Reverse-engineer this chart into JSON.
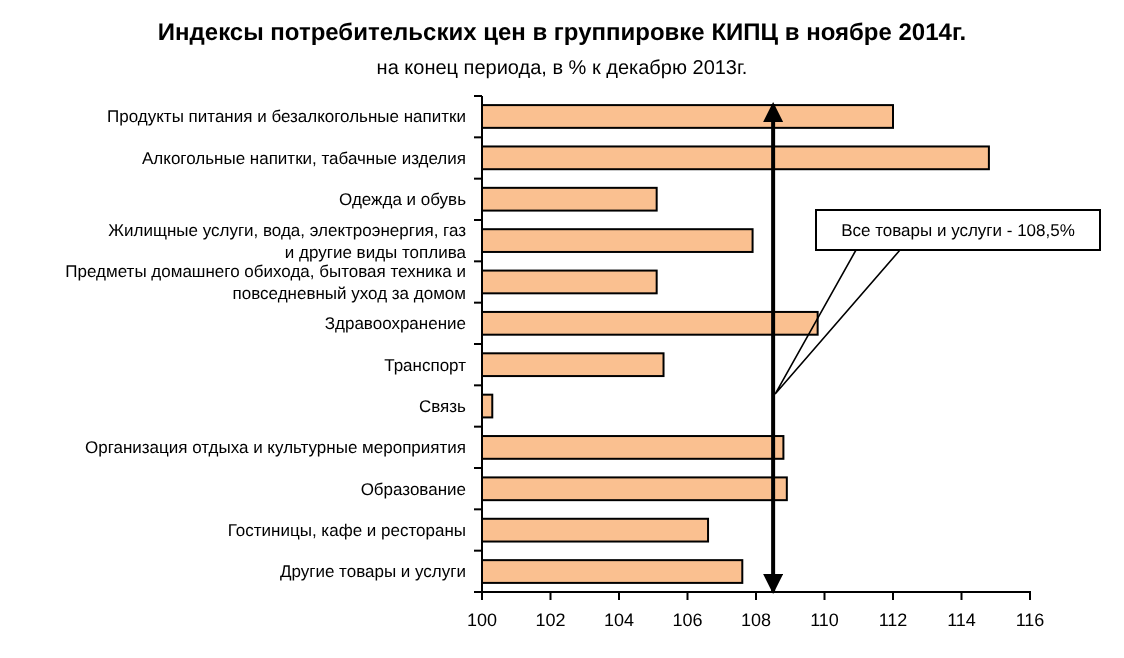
{
  "chart_data": {
    "type": "bar",
    "orientation": "horizontal",
    "title": "Индексы потребительских цен в группировке КИПЦ в ноябре 2014г.",
    "subtitle": "на конец периода, в % к декабрю 2013г.",
    "categories": [
      "Продукты питания и безалкогольные напитки",
      "Алкогольные напитки, табачные изделия",
      "Одежда и обувь",
      "Жилищные услуги, вода, электроэнергия, газ\nи другие виды топлива",
      "Предметы домашнего обихода, бытовая техника и\nповседневный уход за домом",
      "Здравоохранение",
      "Транспорт",
      "Связь",
      "Организация отдыха и культурные мероприятия",
      "Образование",
      "Гостиницы, кафе и рестораны",
      "Другие товары и услуги"
    ],
    "values": [
      112.0,
      114.8,
      105.1,
      107.9,
      105.1,
      109.8,
      105.3,
      100.3,
      108.8,
      108.9,
      106.6,
      107.6
    ],
    "color": "#fac090",
    "xlim": [
      100,
      116
    ],
    "xticks": [
      100,
      102,
      104,
      106,
      108,
      110,
      112,
      114,
      116
    ],
    "ref_lines": [
      {
        "axis": "x",
        "value": 108.5,
        "label": "Все товары и услуги - 108,5%",
        "color": "#000000"
      }
    ]
  }
}
